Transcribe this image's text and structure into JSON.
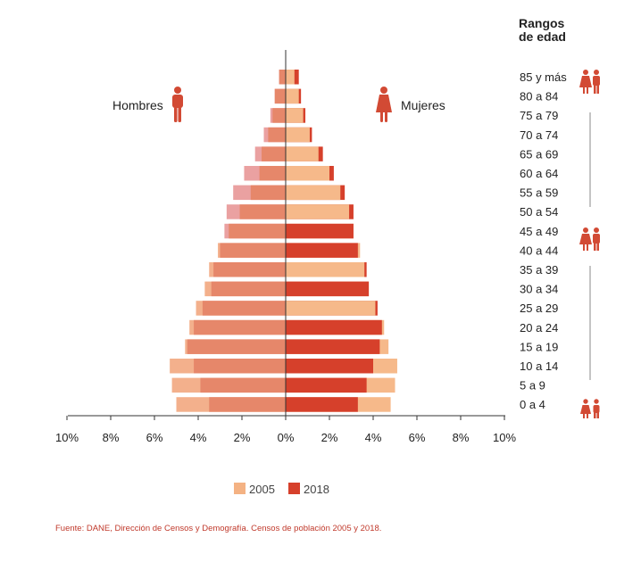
{
  "chart_data": {
    "type": "bar",
    "orientation": "horizontal",
    "chart_style": "population-pyramid",
    "title": "",
    "age_groups_title": "Rangos de edad",
    "male_label": "Hombres",
    "female_label": "Mujeres",
    "categories": [
      "85 y más",
      "80 a 84",
      "75 a 79",
      "70 a 74",
      "65 a 69",
      "60 a 64",
      "55 a 59",
      "50 a 54",
      "45 a 49",
      "40 a 44",
      "35 a 39",
      "30 a 34",
      "25 a 29",
      "20 a 24",
      "15 a 19",
      "10 a 14",
      "5 a 9",
      "0 a 4"
    ],
    "xlim": [
      -10,
      10
    ],
    "xticks": [
      -10,
      -8,
      -6,
      -4,
      -2,
      0,
      2,
      4,
      6,
      8,
      10
    ],
    "xtick_labels": [
      "10%",
      "8%",
      "6%",
      "4%",
      "2%",
      "0%",
      "2%",
      "4%",
      "6%",
      "8%",
      "10%"
    ],
    "series": [
      {
        "name": "2005",
        "male": [
          0.3,
          0.5,
          0.7,
          1.0,
          1.4,
          1.9,
          2.4,
          2.7,
          2.8,
          3.1,
          3.5,
          3.7,
          4.1,
          4.4,
          4.6,
          5.3,
          5.2,
          5.0
        ],
        "female": [
          0.4,
          0.6,
          0.8,
          1.1,
          1.5,
          2.0,
          2.5,
          2.9,
          3.1,
          3.4,
          3.6,
          3.8,
          4.1,
          4.5,
          4.7,
          5.1,
          5.0,
          4.8
        ]
      },
      {
        "name": "2018",
        "male": [
          0.3,
          0.5,
          0.6,
          0.8,
          1.1,
          1.2,
          1.6,
          2.1,
          2.6,
          3.0,
          3.3,
          3.4,
          3.8,
          4.2,
          4.5,
          4.2,
          3.9,
          3.5
        ],
        "female": [
          0.6,
          0.7,
          0.9,
          1.2,
          1.7,
          2.2,
          2.7,
          3.1,
          3.1,
          3.3,
          3.7,
          3.8,
          4.2,
          4.4,
          4.3,
          4.0,
          3.7,
          3.3
        ]
      }
    ],
    "colors": {
      "male_2005": "#f3b08c",
      "male_2018": "#e6876a",
      "male_2005_older": "#eaa1a1",
      "female_2005": "#f6b98a",
      "female_2018": "#d6402b",
      "axis": "#333333",
      "icon": "#d24a34",
      "legend_2005": "#f4b283",
      "legend_2018": "#d6402b"
    },
    "legend_placement": "bottom-center",
    "grid": false
  },
  "source": "Fuente: DANE, Dirección de Censos y Demografía. Censos de población 2005 y 2018.",
  "icons": {
    "male": "man-icon",
    "female": "woman-icon",
    "elderly_pair": "couple-icon",
    "adult_pair": "couple-icon",
    "child_pair": "children-icon"
  }
}
